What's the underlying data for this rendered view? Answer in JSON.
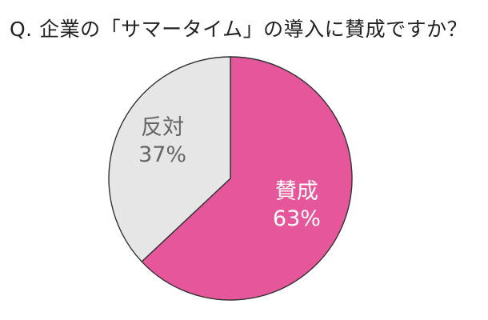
{
  "chart_data": {
    "type": "pie",
    "title": "Q. 企業の「サマータイム」の導入に賛成ですか？",
    "slices": [
      {
        "label": "賛成",
        "value": 63,
        "value_label": "63%",
        "color": "#e5569a",
        "text_color": "#ffffff"
      },
      {
        "label": "反対",
        "value": 37,
        "value_label": "37%",
        "color": "#e6e6e6",
        "text_color": "#666666"
      }
    ],
    "start_angle": "12 o'clock",
    "direction": "clockwise",
    "outline_color": "#333333"
  }
}
